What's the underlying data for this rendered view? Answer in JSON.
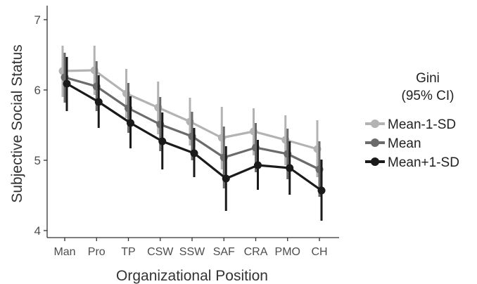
{
  "chart_data": {
    "type": "line",
    "title": "",
    "xlabel": "Organizational Position",
    "ylabel": "Subjective Social Status",
    "categories": [
      "Man",
      "Pro",
      "TP",
      "CSW",
      "SSW",
      "SAF",
      "CRA",
      "PMO",
      "CH"
    ],
    "yticks": [
      "4",
      "5",
      "6",
      "7"
    ],
    "ylim": [
      3.9,
      7.2
    ],
    "grid": false,
    "error_bars": "95% CI",
    "legend": {
      "title_line1": "Gini",
      "title_line2": "(95% CI)",
      "placement": "right"
    },
    "series": [
      {
        "name": "Mean-1-SD",
        "color": "#b3b3b3",
        "values": [
          6.27,
          6.28,
          5.95,
          5.75,
          5.55,
          5.32,
          5.41,
          5.29,
          5.16
        ],
        "lower": [
          5.9,
          5.93,
          5.6,
          5.37,
          5.21,
          4.87,
          5.07,
          4.93,
          4.76
        ],
        "upper": [
          6.63,
          6.63,
          6.3,
          6.12,
          5.89,
          5.76,
          5.74,
          5.64,
          5.57
        ]
      },
      {
        "name": "Mean",
        "color": "#6b6b6b",
        "values": [
          6.18,
          6.05,
          5.74,
          5.51,
          5.34,
          5.04,
          5.18,
          5.09,
          4.87
        ],
        "lower": [
          5.82,
          5.7,
          5.39,
          5.13,
          5.0,
          4.6,
          4.83,
          4.73,
          4.48
        ],
        "upper": [
          6.53,
          6.41,
          6.1,
          5.9,
          5.69,
          5.48,
          5.53,
          5.45,
          5.27
        ]
      },
      {
        "name": "Mean+1-SD",
        "color": "#1a1a1a",
        "values": [
          6.09,
          5.83,
          5.53,
          5.27,
          5.1,
          4.74,
          4.93,
          4.89,
          4.57
        ],
        "lower": [
          5.7,
          5.46,
          5.17,
          4.87,
          4.76,
          4.28,
          4.58,
          4.51,
          4.14
        ],
        "upper": [
          6.47,
          6.21,
          5.91,
          5.68,
          5.46,
          5.2,
          5.29,
          5.27,
          5.01
        ]
      }
    ]
  }
}
